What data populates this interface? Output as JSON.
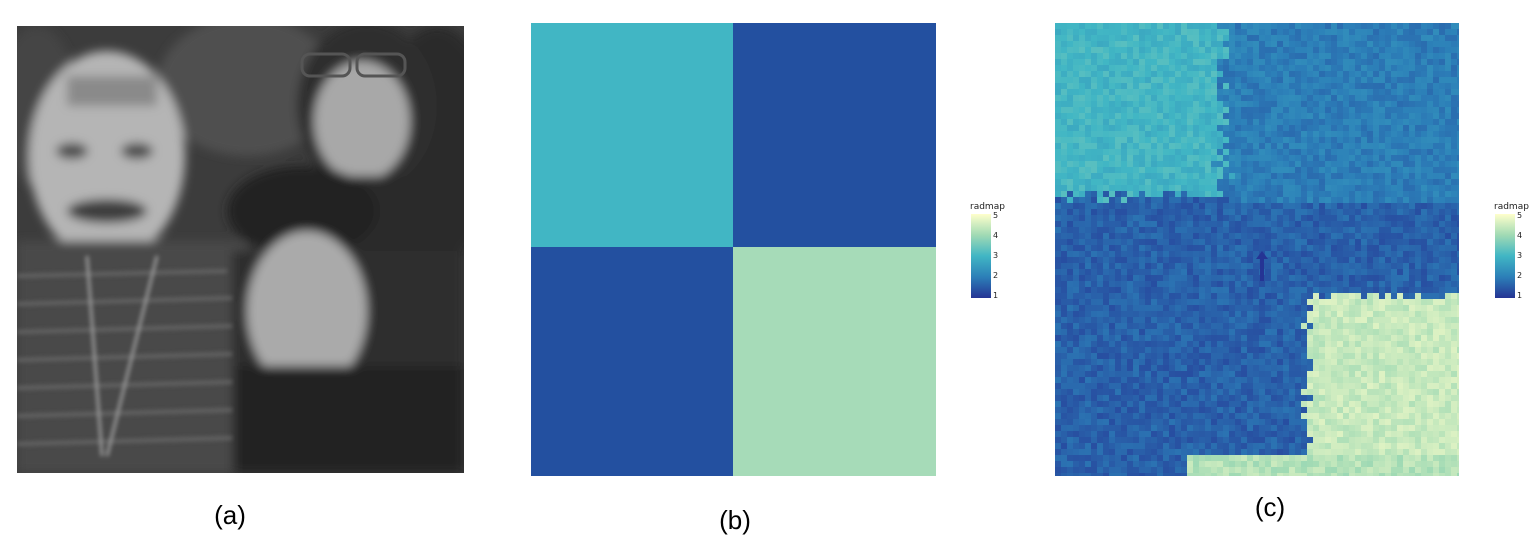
{
  "captions": {
    "a": "(a)",
    "b": "(b)",
    "c": "(c)"
  },
  "legend": {
    "title": "radmap",
    "ticks": [
      "5",
      "4",
      "3",
      "2",
      "1"
    ],
    "range": [
      1,
      5
    ],
    "colors": [
      "#ffffcc",
      "#a1dab4",
      "#41b6c4",
      "#2c7fb8",
      "#253494"
    ]
  },
  "chart_data": [
    {
      "type": "heatmap",
      "panel": "b",
      "grid": [
        [
          3,
          1
        ],
        [
          1,
          4
        ]
      ],
      "colors": {
        "1": "#2350a0",
        "3": "#41b6c4",
        "4": "#a6dbb8"
      },
      "legend_title": "radmap",
      "range": [
        1,
        5
      ]
    },
    {
      "type": "heatmap",
      "panel": "c",
      "quadrants": [
        [
          3,
          1.5
        ],
        [
          1.5,
          4.5
        ]
      ],
      "legend_title": "radmap",
      "range": [
        1,
        5
      ]
    }
  ]
}
